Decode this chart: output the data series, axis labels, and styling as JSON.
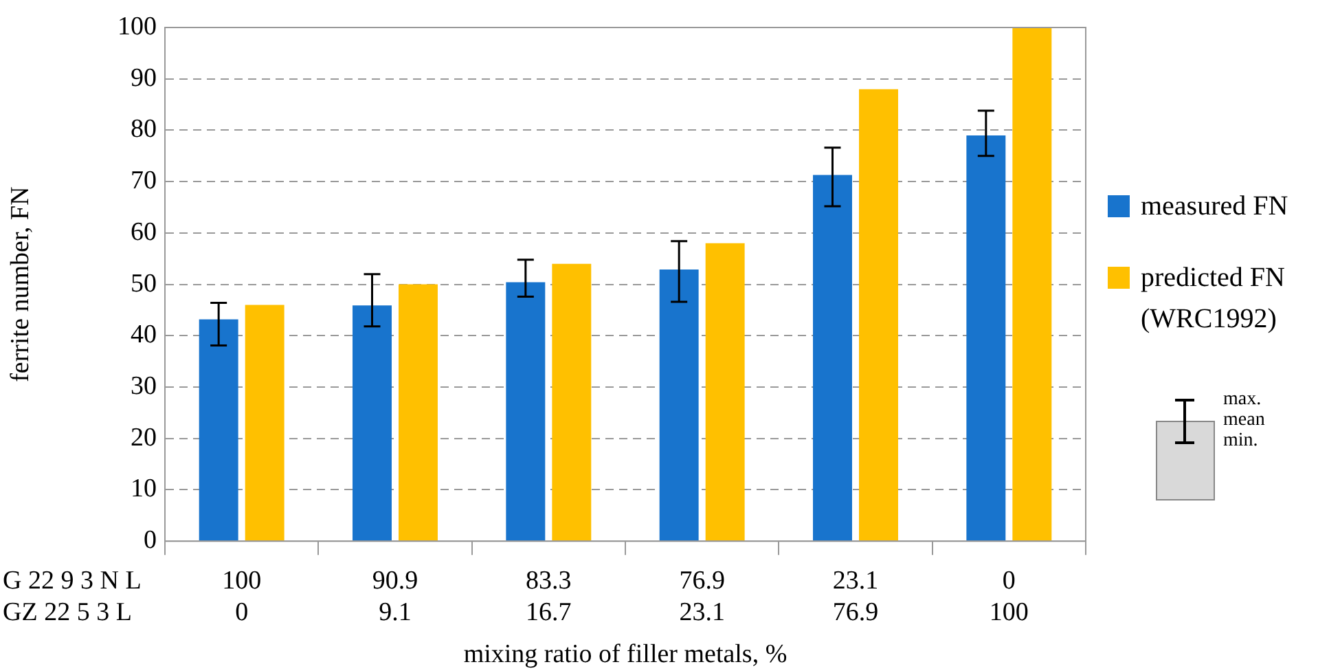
{
  "chart_data": {
    "type": "bar",
    "xlabel": "mixing ratio of filler metals, %",
    "ylabel": "ferrite number, FN",
    "categories": [
      "100\n0",
      "90.9\n9.1",
      "83.3\n16.7",
      "76.9\n23.1",
      "23.1\n76.9",
      "0\n100"
    ],
    "series": [
      {
        "name": "measured FN",
        "color": "#1874cd",
        "values": [
          43.2,
          45.9,
          50.4,
          52.9,
          71.3,
          79.0
        ],
        "errors": [
          [
            38.1,
            46.4
          ],
          [
            41.8,
            52.0
          ],
          [
            47.6,
            54.8
          ],
          [
            46.6,
            58.4
          ],
          [
            65.2,
            76.6
          ],
          [
            75.0,
            83.8
          ]
        ]
      },
      {
        "name": "predicted FN (WRC1992)",
        "color": "#ffc000",
        "values": [
          46,
          50,
          54,
          58,
          88,
          100
        ]
      }
    ],
    "ylim": [
      0,
      100
    ],
    "yticks": [
      0,
      10,
      20,
      30,
      40,
      50,
      60,
      70,
      80,
      90,
      100
    ],
    "grid": "y",
    "legend": "right",
    "annotations": [
      "G 22 9 3 N L",
      "GZ 22 5 3 L",
      "max.",
      "mean",
      "min."
    ]
  }
}
